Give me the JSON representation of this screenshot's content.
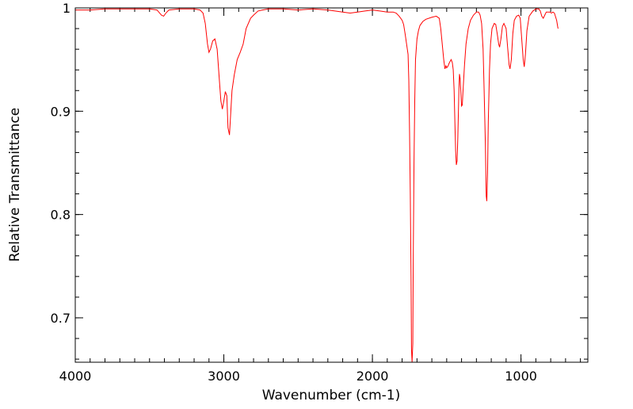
{
  "chart_data": {
    "type": "line",
    "title": "",
    "xlabel": "Wavenumber (cm-1)",
    "ylabel": "Relative Transmittance",
    "xlim": [
      4000,
      550
    ],
    "ylim": [
      0.657,
      1.0
    ],
    "x_reversed": true,
    "grid": false,
    "legend": "none",
    "x_ticks": [
      4000,
      3000,
      2000,
      1000
    ],
    "x_tick_labels": [
      "4000",
      "3000",
      "2000",
      "1000"
    ],
    "y_ticks": [
      0.7,
      0.8,
      0.9,
      1.0
    ],
    "y_tick_labels": [
      "0.7",
      "0.8",
      "0.9",
      "1"
    ],
    "line_color": "#ff0000",
    "series": [
      {
        "points": [
          [
            4000,
            0.998
          ],
          [
            3900,
            0.998
          ],
          [
            3800,
            0.999
          ],
          [
            3700,
            0.999
          ],
          [
            3600,
            0.999
          ],
          [
            3500,
            0.999
          ],
          [
            3450,
            0.998
          ],
          [
            3420,
            0.993
          ],
          [
            3405,
            0.992
          ],
          [
            3390,
            0.995
          ],
          [
            3370,
            0.998
          ],
          [
            3300,
            0.999
          ],
          [
            3200,
            0.999
          ],
          [
            3160,
            0.998
          ],
          [
            3140,
            0.995
          ],
          [
            3125,
            0.985
          ],
          [
            3110,
            0.965
          ],
          [
            3100,
            0.957
          ],
          [
            3090,
            0.96
          ],
          [
            3075,
            0.968
          ],
          [
            3060,
            0.97
          ],
          [
            3045,
            0.96
          ],
          [
            3030,
            0.93
          ],
          [
            3020,
            0.91
          ],
          [
            3010,
            0.902
          ],
          [
            3000,
            0.91
          ],
          [
            2990,
            0.919
          ],
          [
            2980,
            0.915
          ],
          [
            2972,
            0.884
          ],
          [
            2962,
            0.877
          ],
          [
            2955,
            0.895
          ],
          [
            2945,
            0.92
          ],
          [
            2930,
            0.935
          ],
          [
            2910,
            0.95
          ],
          [
            2890,
            0.957
          ],
          [
            2870,
            0.965
          ],
          [
            2850,
            0.98
          ],
          [
            2820,
            0.99
          ],
          [
            2800,
            0.993
          ],
          [
            2770,
            0.997
          ],
          [
            2740,
            0.998
          ],
          [
            2700,
            0.999
          ],
          [
            2600,
            0.999
          ],
          [
            2500,
            0.998
          ],
          [
            2400,
            0.999
          ],
          [
            2300,
            0.998
          ],
          [
            2200,
            0.996
          ],
          [
            2150,
            0.995
          ],
          [
            2100,
            0.996
          ],
          [
            2050,
            0.997
          ],
          [
            2000,
            0.998
          ],
          [
            1950,
            0.997
          ],
          [
            1900,
            0.996
          ],
          [
            1860,
            0.996
          ],
          [
            1840,
            0.995
          ],
          [
            1820,
            0.992
          ],
          [
            1800,
            0.988
          ],
          [
            1790,
            0.984
          ],
          [
            1780,
            0.975
          ],
          [
            1770,
            0.965
          ],
          [
            1760,
            0.955
          ],
          [
            1755,
            0.93
          ],
          [
            1750,
            0.88
          ],
          [
            1745,
            0.82
          ],
          [
            1740,
            0.74
          ],
          [
            1737,
            0.67
          ],
          [
            1733,
            0.657
          ],
          [
            1728,
            0.675
          ],
          [
            1725,
            0.76
          ],
          [
            1720,
            0.85
          ],
          [
            1715,
            0.91
          ],
          [
            1710,
            0.95
          ],
          [
            1700,
            0.97
          ],
          [
            1690,
            0.978
          ],
          [
            1680,
            0.983
          ],
          [
            1660,
            0.987
          ],
          [
            1640,
            0.989
          ],
          [
            1600,
            0.991
          ],
          [
            1570,
            0.992
          ],
          [
            1550,
            0.99
          ],
          [
            1540,
            0.98
          ],
          [
            1530,
            0.965
          ],
          [
            1520,
            0.95
          ],
          [
            1512,
            0.941
          ],
          [
            1505,
            0.944
          ],
          [
            1500,
            0.942
          ],
          [
            1490,
            0.944
          ],
          [
            1485,
            0.946
          ],
          [
            1478,
            0.948
          ],
          [
            1470,
            0.95
          ],
          [
            1462,
            0.947
          ],
          [
            1456,
            0.94
          ],
          [
            1450,
            0.92
          ],
          [
            1445,
            0.89
          ],
          [
            1440,
            0.862
          ],
          [
            1435,
            0.848
          ],
          [
            1430,
            0.852
          ],
          [
            1425,
            0.875
          ],
          [
            1418,
            0.92
          ],
          [
            1414,
            0.936
          ],
          [
            1410,
            0.932
          ],
          [
            1405,
            0.92
          ],
          [
            1400,
            0.905
          ],
          [
            1395,
            0.906
          ],
          [
            1390,
            0.92
          ],
          [
            1380,
            0.945
          ],
          [
            1370,
            0.965
          ],
          [
            1355,
            0.98
          ],
          [
            1340,
            0.988
          ],
          [
            1320,
            0.993
          ],
          [
            1300,
            0.996
          ],
          [
            1285,
            0.996
          ],
          [
            1275,
            0.993
          ],
          [
            1265,
            0.985
          ],
          [
            1255,
            0.96
          ],
          [
            1248,
            0.92
          ],
          [
            1240,
            0.87
          ],
          [
            1234,
            0.818
          ],
          [
            1230,
            0.813
          ],
          [
            1225,
            0.84
          ],
          [
            1220,
            0.89
          ],
          [
            1212,
            0.94
          ],
          [
            1205,
            0.965
          ],
          [
            1195,
            0.98
          ],
          [
            1180,
            0.985
          ],
          [
            1170,
            0.984
          ],
          [
            1160,
            0.975
          ],
          [
            1150,
            0.965
          ],
          [
            1144,
            0.962
          ],
          [
            1135,
            0.97
          ],
          [
            1125,
            0.982
          ],
          [
            1115,
            0.985
          ],
          [
            1100,
            0.98
          ],
          [
            1090,
            0.962
          ],
          [
            1080,
            0.945
          ],
          [
            1074,
            0.941
          ],
          [
            1065,
            0.95
          ],
          [
            1055,
            0.975
          ],
          [
            1045,
            0.988
          ],
          [
            1030,
            0.992
          ],
          [
            1015,
            0.993
          ],
          [
            1005,
            0.99
          ],
          [
            995,
            0.97
          ],
          [
            985,
            0.95
          ],
          [
            978,
            0.943
          ],
          [
            970,
            0.955
          ],
          [
            960,
            0.978
          ],
          [
            945,
            0.992
          ],
          [
            920,
            0.997
          ],
          [
            900,
            0.999
          ],
          [
            880,
            0.999
          ],
          [
            870,
            0.997
          ],
          [
            860,
            0.992
          ],
          [
            850,
            0.99
          ],
          [
            840,
            0.993
          ],
          [
            830,
            0.996
          ],
          [
            820,
            0.996
          ],
          [
            805,
            0.996
          ],
          [
            795,
            0.995
          ],
          [
            785,
            0.996
          ],
          [
            775,
            0.995
          ],
          [
            760,
            0.988
          ],
          [
            752,
            0.981
          ],
          [
            750,
            0.98
          ]
        ]
      }
    ]
  }
}
